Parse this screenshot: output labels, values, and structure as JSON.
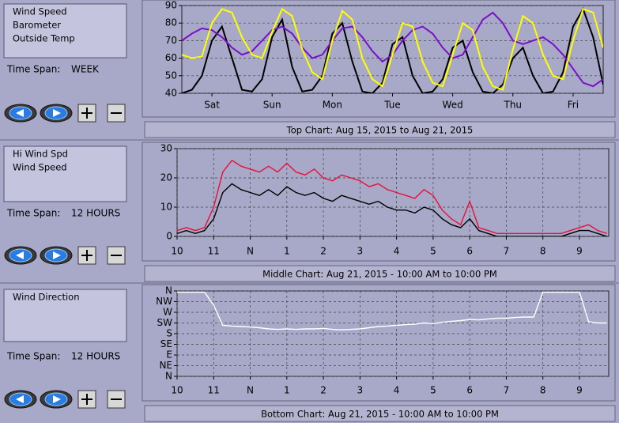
{
  "panels": [
    {
      "time_span_label": "Time Span:",
      "time_span": "WEEK",
      "caption": "Top Chart:  Aug 15, 2015  to  Aug 21, 2015",
      "chart": {
        "type": "line",
        "grid": true,
        "x": [
          0,
          4,
          8,
          12,
          16,
          20,
          24,
          28,
          32,
          36,
          40,
          44,
          48,
          52,
          56,
          60,
          64,
          68,
          72,
          76,
          80,
          84,
          88,
          92,
          96,
          100,
          104,
          108,
          112,
          116,
          120,
          124,
          128,
          132,
          136,
          140,
          144,
          148,
          152,
          156,
          160,
          164,
          168
        ],
        "xlim": [
          0,
          168
        ],
        "xticks": [
          {
            "value": 12,
            "label": "Sat"
          },
          {
            "value": 36,
            "label": "Sun"
          },
          {
            "value": 60,
            "label": "Mon"
          },
          {
            "value": 84,
            "label": "Tue"
          },
          {
            "value": 108,
            "label": "Wed"
          },
          {
            "value": 132,
            "label": "Thu"
          },
          {
            "value": 156,
            "label": "Fri"
          }
        ],
        "ylim": [
          40,
          90
        ],
        "yticks": [
          40,
          50,
          60,
          70,
          80,
          90
        ],
        "series": [
          {
            "name": "Wind Speed",
            "color": "#000000",
            "values": [
              40,
              42,
              50,
              70,
              78,
              60,
              42,
              41,
              48,
              72,
              82,
              55,
              41,
              42,
              50,
              74,
              80,
              58,
              41,
              40,
              46,
              68,
              72,
              50,
              40,
              41,
              48,
              66,
              70,
              52,
              41,
              40,
              45,
              60,
              66,
              50,
              40,
              41,
              52,
              78,
              88,
              72,
              45
            ]
          },
          {
            "name": "Barometer",
            "color": "#7a10c8",
            "values": [
              70,
              74,
              77,
              76,
              72,
              66,
              62,
              64,
              70,
              76,
              78,
              74,
              66,
              60,
              62,
              70,
              77,
              78,
              72,
              64,
              58,
              62,
              70,
              76,
              78,
              74,
              66,
              60,
              62,
              72,
              82,
              86,
              80,
              70,
              68,
              70,
              72,
              68,
              62,
              54,
              46,
              44,
              48
            ]
          },
          {
            "name": "Outside Temp",
            "color": "#ffff00",
            "values": [
              62,
              60,
              61,
              80,
              88,
              86,
              72,
              62,
              60,
              75,
              88,
              84,
              65,
              52,
              48,
              70,
              87,
              82,
              60,
              48,
              44,
              62,
              80,
              78,
              58,
              46,
              44,
              62,
              80,
              76,
              55,
              44,
              42,
              65,
              84,
              80,
              62,
              50,
              48,
              70,
              88,
              86,
              66
            ]
          }
        ]
      }
    },
    {
      "time_span_label": "Time Span:",
      "time_span": "12 HOURS",
      "caption": "Middle Chart:  Aug 21, 2015 - 10:00 AM  to  10:00 PM",
      "chart": {
        "type": "line",
        "grid": true,
        "x": [
          10,
          10.25,
          10.5,
          10.75,
          11,
          11.25,
          11.5,
          11.75,
          12,
          12.25,
          12.5,
          12.75,
          13,
          13.25,
          13.5,
          13.75,
          14,
          14.25,
          14.5,
          14.75,
          15,
          15.25,
          15.5,
          15.75,
          16,
          16.25,
          16.5,
          16.75,
          17,
          17.25,
          17.5,
          17.75,
          18,
          18.25,
          18.5,
          18.75,
          19,
          19.25,
          19.5,
          19.75,
          20,
          20.25,
          20.5,
          20.75,
          21,
          21.25,
          21.5,
          21.75
        ],
        "xlim": [
          10,
          21.8
        ],
        "xticks": [
          10,
          11,
          {
            "value": 12,
            "label": "N"
          },
          {
            "value": 13,
            "label": "1"
          },
          {
            "value": 14,
            "label": "2"
          },
          {
            "value": 15,
            "label": "3"
          },
          {
            "value": 16,
            "label": "4"
          },
          {
            "value": 17,
            "label": "5"
          },
          {
            "value": 18,
            "label": "6"
          },
          {
            "value": 19,
            "label": "7"
          },
          {
            "value": 20,
            "label": "8"
          },
          {
            "value": 21,
            "label": "9"
          }
        ],
        "ylim": [
          0,
          30
        ],
        "yticks": [
          0,
          10,
          20,
          30
        ],
        "series": [
          {
            "name": "Hi Wind Spd",
            "color": "#e8103c",
            "values": [
              2,
              3,
              2,
              3,
              10,
              22,
              26,
              24,
              23,
              22,
              24,
              22,
              25,
              22,
              21,
              23,
              20,
              19,
              21,
              20,
              19,
              17,
              18,
              16,
              15,
              14,
              13,
              16,
              14,
              9,
              6,
              4,
              12,
              3,
              2,
              1,
              1,
              1,
              1,
              1,
              1,
              1,
              1,
              2,
              3,
              4,
              2,
              1
            ]
          },
          {
            "name": "Wind Speed",
            "color": "#000000",
            "values": [
              1,
              2,
              1,
              2,
              6,
              15,
              18,
              16,
              15,
              14,
              16,
              14,
              17,
              15,
              14,
              15,
              13,
              12,
              14,
              13,
              12,
              11,
              12,
              10,
              9,
              9,
              8,
              10,
              9,
              6,
              4,
              3,
              6,
              2,
              1,
              0,
              0,
              0,
              0,
              0,
              0,
              0,
              0,
              1,
              2,
              2,
              1,
              0
            ]
          }
        ]
      }
    },
    {
      "time_span_label": "Time Span:",
      "time_span": "12 HOURS",
      "caption": "Bottom Chart:  Aug 21, 2015 - 10:00 AM  to  10:00 PM",
      "chart": {
        "type": "line",
        "grid": true,
        "x": [
          10,
          10.25,
          10.5,
          10.75,
          11,
          11.25,
          11.5,
          11.75,
          12,
          12.25,
          12.5,
          12.75,
          13,
          13.25,
          13.5,
          13.75,
          14,
          14.25,
          14.5,
          14.75,
          15,
          15.25,
          15.5,
          15.75,
          16,
          16.25,
          16.5,
          16.75,
          17,
          17.25,
          17.5,
          17.75,
          18,
          18.25,
          18.5,
          18.75,
          19,
          19.25,
          19.5,
          19.75,
          20,
          20.25,
          20.5,
          20.75,
          21,
          21.25,
          21.5,
          21.75
        ],
        "xlim": [
          10,
          21.8
        ],
        "xticks": [
          10,
          11,
          {
            "value": 12,
            "label": "N"
          },
          {
            "value": 13,
            "label": "1"
          },
          {
            "value": 14,
            "label": "2"
          },
          {
            "value": 15,
            "label": "3"
          },
          {
            "value": 16,
            "label": "4"
          },
          {
            "value": 17,
            "label": "5"
          },
          {
            "value": 18,
            "label": "6"
          },
          {
            "value": 19,
            "label": "7"
          },
          {
            "value": 20,
            "label": "8"
          },
          {
            "value": 21,
            "label": "9"
          }
        ],
        "ylim": [
          0,
          360
        ],
        "yticks": [
          {
            "value": 0,
            "label": "N"
          },
          {
            "value": 45,
            "label": "NE"
          },
          {
            "value": 90,
            "label": "E"
          },
          {
            "value": 135,
            "label": "SE"
          },
          {
            "value": 180,
            "label": "S"
          },
          {
            "value": 225,
            "label": "SW"
          },
          {
            "value": 270,
            "label": "W"
          },
          {
            "value": 315,
            "label": "NW"
          },
          {
            "value": 360,
            "label": "N"
          }
        ],
        "series": [
          {
            "name": "Wind Direction",
            "color": "#ffffff",
            "values": [
              355,
              355,
              355,
              355,
              300,
              215,
              212,
              210,
              208,
              205,
              200,
              198,
              200,
              198,
              200,
              200,
              202,
              198,
              196,
              198,
              200,
              205,
              210,
              212,
              215,
              218,
              220,
              225,
              222,
              228,
              232,
              235,
              240,
              238,
              242,
              245,
              245,
              248,
              250,
              250,
              355,
              355,
              355,
              355,
              355,
              230,
              225,
              225
            ]
          }
        ]
      }
    }
  ]
}
